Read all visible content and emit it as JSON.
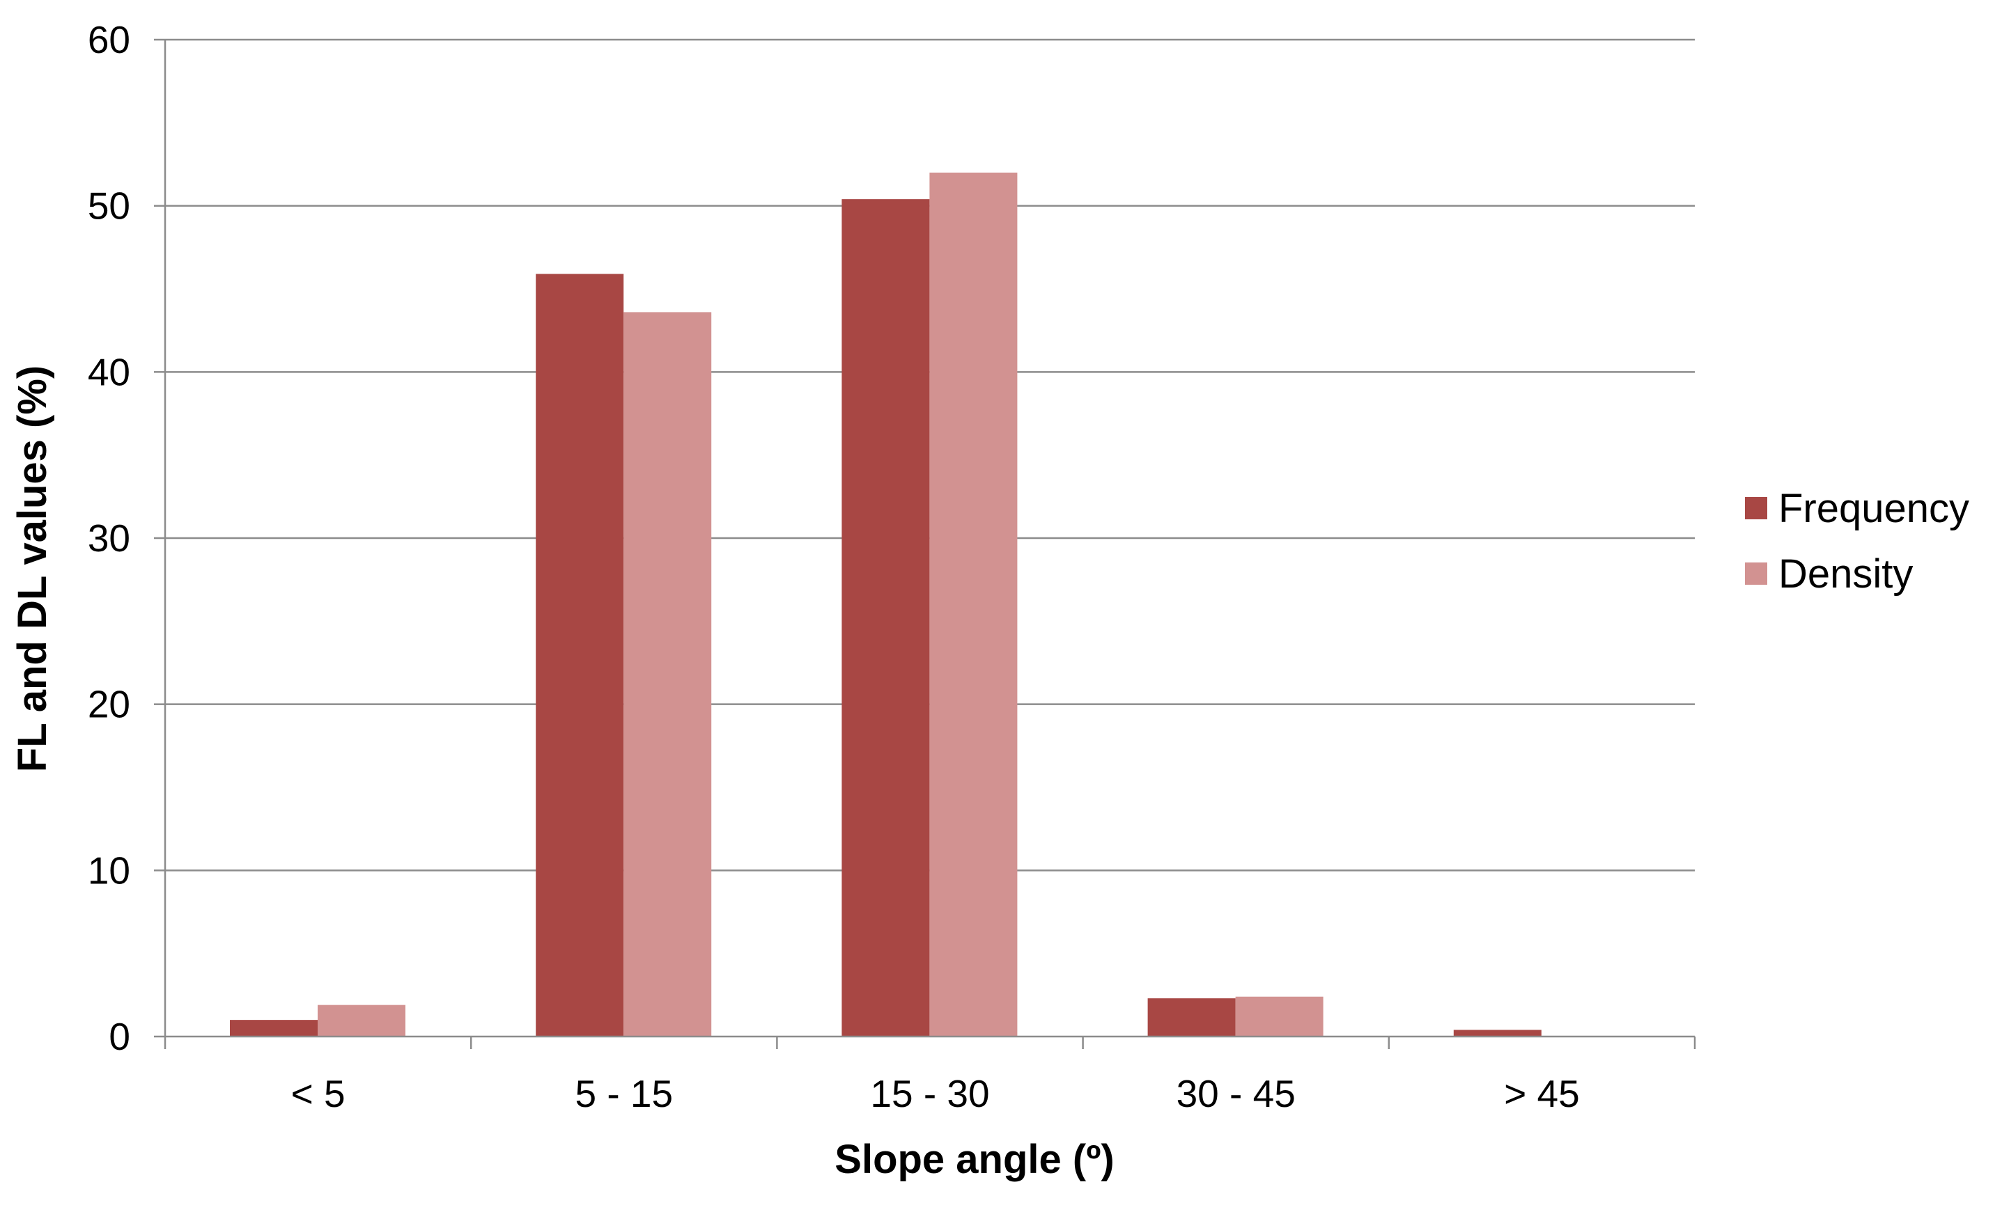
{
  "chart_data": {
    "type": "bar",
    "title": "",
    "xlabel": "Slope angle (º)",
    "ylabel": "FL and DL values (%)",
    "categories": [
      "< 5",
      "5 - 15",
      "15 - 30",
      "30 - 45",
      "> 45"
    ],
    "series": [
      {
        "name": "Frequency",
        "color": "#a84744",
        "values": [
          1.0,
          45.9,
          50.4,
          2.3,
          0.4
        ]
      },
      {
        "name": "Density",
        "color": "#d29291",
        "values": [
          1.9,
          43.6,
          52.0,
          2.4,
          0.0
        ]
      }
    ],
    "ylim": [
      0,
      60
    ],
    "yticks": [
      0,
      10,
      20,
      30,
      40,
      50,
      60
    ],
    "grid": "horizontal",
    "legend_position": "right"
  }
}
